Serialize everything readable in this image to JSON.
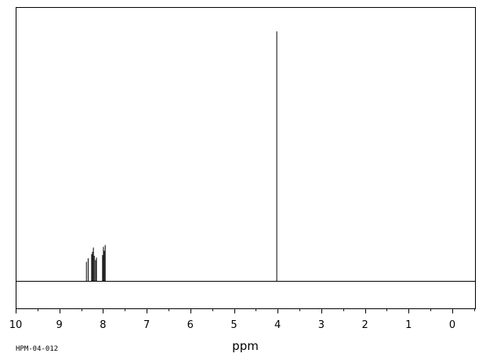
{
  "chart_data": {
    "type": "line",
    "xlabel": "ppm",
    "x_reversed": true,
    "xlim": [
      10,
      -0.5
    ],
    "x_ticks": [
      "10",
      "9",
      "8",
      "7",
      "6",
      "5",
      "4",
      "3",
      "2",
      "1",
      "0"
    ],
    "ylim": [
      0,
      1
    ],
    "grid": false,
    "spectrum_id": "HPM-04-012",
    "series": [
      {
        "peaks": [
          {
            "ppm": 8.38,
            "height": 0.078
          },
          {
            "ppm": 8.34,
            "height": 0.092
          },
          {
            "ppm": 8.26,
            "height": 0.108
          },
          {
            "ppm": 8.24,
            "height": 0.118
          },
          {
            "ppm": 8.22,
            "height": 0.135
          },
          {
            "ppm": 8.2,
            "height": 0.102
          },
          {
            "ppm": 8.17,
            "height": 0.085
          },
          {
            "ppm": 8.15,
            "height": 0.095
          },
          {
            "ppm": 8.01,
            "height": 0.105
          },
          {
            "ppm": 7.99,
            "height": 0.138
          },
          {
            "ppm": 7.97,
            "height": 0.122
          },
          {
            "ppm": 7.95,
            "height": 0.145
          },
          {
            "ppm": 4.02,
            "height": 1.0
          }
        ]
      }
    ]
  }
}
